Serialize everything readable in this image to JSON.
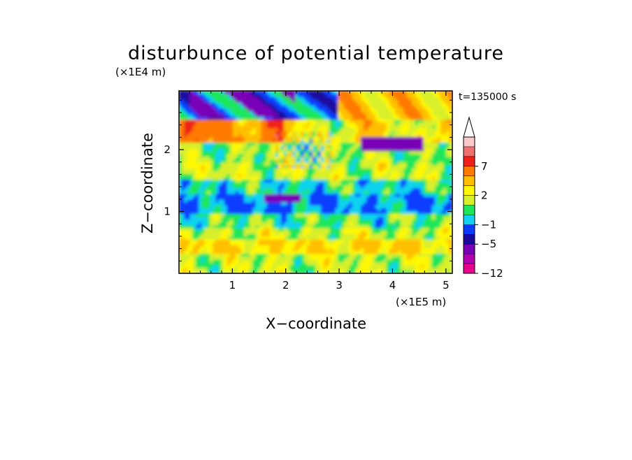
{
  "chart_data": {
    "type": "heatmap",
    "title": "disturbunce of potential temperature",
    "xlabel": "X−coordinate",
    "ylabel": "Z−coordinate",
    "x_unit": "(×1E5 m)",
    "y_unit": "(×1E4 m)",
    "time_label": "t=135000 s",
    "xlim": [
      0,
      5.12
    ],
    "ylim": [
      0,
      2.95
    ],
    "x_ticks": [
      "1",
      "2",
      "3",
      "4",
      "5"
    ],
    "y_ticks": [
      "1",
      "2"
    ],
    "x_tick_values": [
      1,
      2,
      3,
      4,
      5
    ],
    "y_tick_values": [
      1,
      2
    ],
    "colorbar": {
      "labeled_ticks": [
        "7",
        "2",
        "−1",
        "−5",
        "−12"
      ],
      "labeled_values": [
        7,
        2,
        -1,
        -5,
        -12
      ],
      "extend": "max",
      "colors": [
        "#e6008c",
        "#b000b0",
        "#7a00b8",
        "#1a0aa0",
        "#0a3cff",
        "#10d2f0",
        "#1ee65a",
        "#d8f02a",
        "#fff800",
        "#ffbf00",
        "#ff7a00",
        "#f02018",
        "#f07070",
        "#fac8c8"
      ]
    },
    "field_bands": [
      {
        "z_range": [
          0.0,
          0.3
        ],
        "value": 1.5,
        "note": "light yellow near surface with green patches"
      },
      {
        "z_range": [
          0.3,
          0.55
        ],
        "value": 3.0,
        "note": "orange band"
      },
      {
        "z_range": [
          0.55,
          0.75
        ],
        "value": 1.5
      },
      {
        "z_range": [
          0.75,
          0.95
        ],
        "value": 0.5
      },
      {
        "z_range": [
          0.95,
          1.3
        ],
        "value": -1.0,
        "note": "cyan layer"
      },
      {
        "z_range": [
          1.3,
          1.5
        ],
        "value": 0.0
      },
      {
        "z_range": [
          1.5,
          1.8
        ],
        "value": 1.5
      },
      {
        "z_range": [
          1.8,
          2.1
        ],
        "value": 1.0
      },
      {
        "z_range": [
          2.1,
          2.5
        ],
        "value": 4.0,
        "note": "orange/red band on left"
      },
      {
        "z_range": [
          2.5,
          2.95
        ],
        "value": -1.0,
        "note": "cyan with blue cores at top-left; orange/red at top-right"
      }
    ]
  }
}
